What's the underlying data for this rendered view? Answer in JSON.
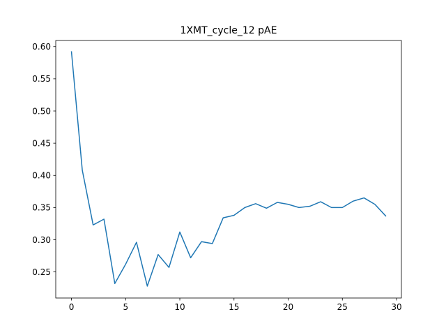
{
  "chart_data": {
    "type": "line",
    "title": "1XMT_cycle_12 pAE",
    "xlabel": "",
    "ylabel": "",
    "xlim": [
      -1.45,
      30.45
    ],
    "ylim": [
      0.2095,
      0.6095
    ],
    "x_ticks": [
      0,
      5,
      10,
      15,
      20,
      25,
      30
    ],
    "y_ticks": [
      0.25,
      0.3,
      0.35,
      0.4,
      0.45,
      0.5,
      0.55,
      0.6
    ],
    "grid": false,
    "legend": "none",
    "series": [
      {
        "color": "#1f77b4",
        "x": [
          0,
          1,
          2,
          3,
          4,
          5,
          6,
          7,
          8,
          9,
          10,
          11,
          12,
          13,
          14,
          15,
          16,
          17,
          18,
          19,
          20,
          21,
          22,
          23,
          24,
          25,
          26,
          27,
          28,
          29
        ],
        "y": [
          0.592,
          0.408,
          0.323,
          0.332,
          0.232,
          0.262,
          0.296,
          0.228,
          0.277,
          0.257,
          0.312,
          0.272,
          0.297,
          0.294,
          0.334,
          0.338,
          0.35,
          0.356,
          0.349,
          0.358,
          0.355,
          0.35,
          0.352,
          0.359,
          0.35,
          0.35,
          0.36,
          0.365,
          0.355,
          0.337
        ]
      }
    ]
  }
}
